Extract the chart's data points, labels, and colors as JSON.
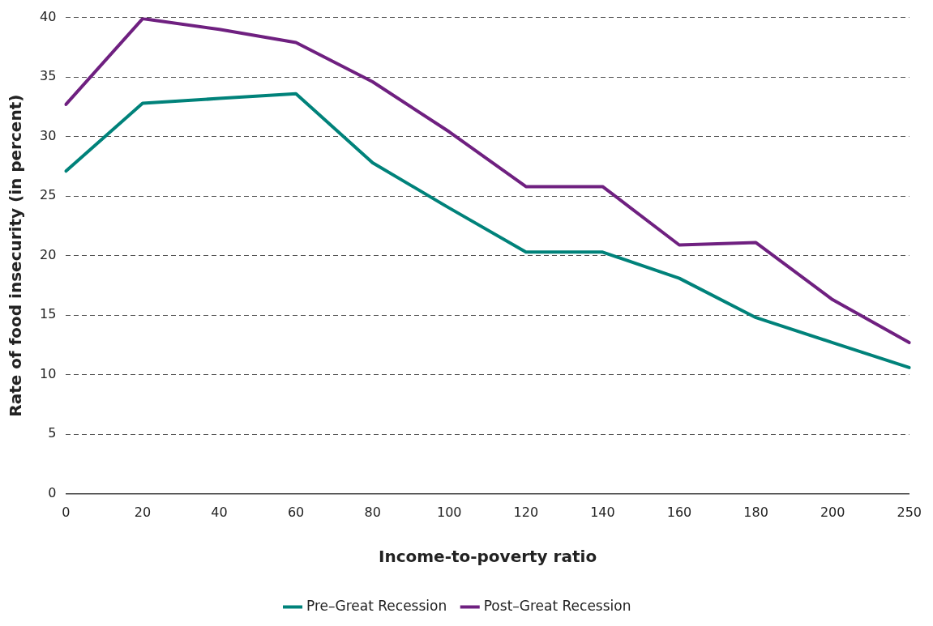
{
  "chart_data": {
    "type": "line",
    "xlabel": "Income-to-poverty ratio",
    "ylabel": "Rate of food insecurity (in percent)",
    "categories": [
      "0",
      "20",
      "40",
      "60",
      "80",
      "100",
      "120",
      "140",
      "160",
      "180",
      "200",
      "250"
    ],
    "series": [
      {
        "name": "Pre–Great Recession",
        "color": "#00827a",
        "values": [
          27.1,
          32.8,
          33.2,
          33.6,
          27.8,
          24.0,
          20.3,
          20.3,
          18.1,
          14.8,
          12.7,
          10.6
        ]
      },
      {
        "name": "Post–Great Recession",
        "color": "#6f2080",
        "values": [
          32.7,
          39.9,
          39.0,
          37.9,
          34.6,
          30.4,
          25.8,
          25.8,
          20.9,
          21.1,
          16.3,
          12.7
        ]
      }
    ],
    "ylim": [
      0,
      40
    ],
    "yticks": [
      0,
      5,
      10,
      15,
      20,
      25,
      30,
      35,
      40
    ],
    "grid": "y",
    "legend": "bottom",
    "marker": "none",
    "line_style": "solid"
  }
}
